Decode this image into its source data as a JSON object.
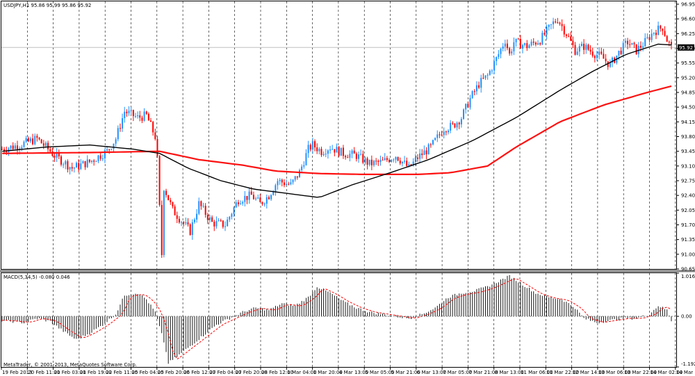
{
  "window": {
    "main_title": "USDJPY,H1  95.86 95.99 95.86 95.92",
    "macd_title": "MACD(5,34,5) -0.080 0.046",
    "copyright": "MetaTrader, © 2001-2013, MetaQuotes Software Corp."
  },
  "price_badge": {
    "value": "95.92",
    "color": "#000000"
  },
  "colors": {
    "bull": "#1e90ff",
    "bear": "#ff0000",
    "ma_fast": "#000000",
    "ma_slow": "#ff1010",
    "macd_hist": "#000000",
    "macd_signal": "#ff0000",
    "grid": "#000000"
  },
  "chart_data": [
    {
      "type": "candlestick",
      "symbol": "USDJPY",
      "timeframe": "H1",
      "x_labels": [
        "19 Feb 2013",
        "20 Feb 11:00",
        "21 Feb 03:00",
        "21 Feb 19:00",
        "22 Feb 11:00",
        "25 Feb 04:00",
        "25 Feb 20:00",
        "26 Feb 12:00",
        "27 Feb 04:00",
        "27 Feb 20:00",
        "28 Feb 12:00",
        "1 Mar 04:00",
        "1 Mar 20:00",
        "4 Mar 13:00",
        "5 Mar 05:00",
        "5 Mar 21:00",
        "6 Mar 13:00",
        "7 Mar 05:00",
        "7 Mar 21:00",
        "8 Mar 13:00",
        "11 Mar 06:00",
        "11 Mar 22:00",
        "12 Mar 14:00",
        "13 Mar 06:00",
        "13 Mar 22:00",
        "14 Mar 02:00",
        "14 Mar 18:00"
      ],
      "y_ticks": [
        "96.95",
        "96.60",
        "96.25",
        "95.90",
        "95.55",
        "95.20",
        "94.85",
        "94.50",
        "94.15",
        "93.80",
        "93.45",
        "93.10",
        "92.75",
        "92.40",
        "92.05",
        "91.70",
        "91.35",
        "91.00",
        "90.65"
      ],
      "ylim": [
        90.65,
        96.95
      ],
      "grid": true,
      "anchors": [
        [
          0,
          93.5
        ],
        [
          8,
          93.6
        ],
        [
          16,
          93.75
        ],
        [
          24,
          93.35
        ],
        [
          32,
          93.05
        ],
        [
          40,
          93.2
        ],
        [
          48,
          93.45
        ],
        [
          52,
          93.75
        ],
        [
          56,
          94.4
        ],
        [
          62,
          94.25
        ],
        [
          66,
          94.3
        ],
        [
          70,
          93.8
        ],
        [
          71,
          93.25
        ],
        [
          72,
          92.1
        ],
        [
          73,
          91.0
        ],
        [
          74,
          92.6
        ],
        [
          78,
          92.05
        ],
        [
          82,
          91.8
        ],
        [
          86,
          91.55
        ],
        [
          90,
          92.2
        ],
        [
          96,
          91.75
        ],
        [
          102,
          91.7
        ],
        [
          108,
          92.3
        ],
        [
          114,
          92.4
        ],
        [
          118,
          92.2
        ],
        [
          122,
          92.4
        ],
        [
          126,
          92.75
        ],
        [
          132,
          92.65
        ],
        [
          136,
          92.95
        ],
        [
          140,
          93.5
        ],
        [
          142,
          93.6
        ],
        [
          146,
          93.45
        ],
        [
          150,
          93.55
        ],
        [
          156,
          93.4
        ],
        [
          162,
          93.35
        ],
        [
          168,
          93.15
        ],
        [
          174,
          93.2
        ],
        [
          180,
          93.35
        ],
        [
          186,
          93.05
        ],
        [
          190,
          93.3
        ],
        [
          196,
          93.55
        ],
        [
          202,
          94.0
        ],
        [
          206,
          94.05
        ],
        [
          210,
          94.25
        ],
        [
          214,
          94.7
        ],
        [
          218,
          95.05
        ],
        [
          222,
          95.25
        ],
        [
          226,
          95.65
        ],
        [
          230,
          96.1
        ],
        [
          232,
          95.75
        ],
        [
          234,
          96.05
        ],
        [
          240,
          95.95
        ],
        [
          246,
          96.1
        ],
        [
          252,
          96.5
        ],
        [
          254,
          96.6
        ],
        [
          258,
          96.25
        ],
        [
          262,
          95.85
        ],
        [
          266,
          95.95
        ],
        [
          270,
          95.8
        ],
        [
          274,
          95.7
        ],
        [
          278,
          95.5
        ],
        [
          282,
          95.8
        ],
        [
          286,
          96.05
        ],
        [
          290,
          95.85
        ],
        [
          294,
          96.05
        ],
        [
          298,
          96.3
        ],
        [
          302,
          96.4
        ],
        [
          304,
          96.1
        ],
        [
          306,
          95.92
        ]
      ],
      "ma_fast_anchors": [
        [
          0,
          93.45
        ],
        [
          20,
          93.55
        ],
        [
          40,
          93.6
        ],
        [
          60,
          93.5
        ],
        [
          72,
          93.4
        ],
        [
          85,
          93.05
        ],
        [
          100,
          92.75
        ],
        [
          115,
          92.55
        ],
        [
          130,
          92.45
        ],
        [
          145,
          92.35
        ],
        [
          160,
          92.65
        ],
        [
          178,
          92.95
        ],
        [
          195,
          93.25
        ],
        [
          215,
          93.7
        ],
        [
          235,
          94.25
        ],
        [
          255,
          94.9
        ],
        [
          270,
          95.35
        ],
        [
          285,
          95.75
        ],
        [
          300,
          96.0
        ],
        [
          306,
          95.98
        ]
      ],
      "ma_slow_anchors": [
        [
          0,
          93.4
        ],
        [
          40,
          93.42
        ],
        [
          72,
          93.45
        ],
        [
          90,
          93.25
        ],
        [
          110,
          93.12
        ],
        [
          125,
          92.98
        ],
        [
          145,
          92.92
        ],
        [
          165,
          92.9
        ],
        [
          190,
          92.9
        ],
        [
          205,
          92.94
        ],
        [
          222,
          93.1
        ],
        [
          235,
          93.55
        ],
        [
          255,
          94.15
        ],
        [
          275,
          94.55
        ],
        [
          295,
          94.85
        ],
        [
          306,
          95.0
        ]
      ]
    },
    {
      "type": "bar",
      "indicator": "MACD(5,34,5)",
      "y_ticks": [
        "1.016",
        "0.00",
        "-1.192"
      ],
      "ylim": [
        -1.192,
        1.016
      ],
      "anchors": [
        [
          0,
          -0.1
        ],
        [
          10,
          -0.15
        ],
        [
          16,
          -0.05
        ],
        [
          22,
          -0.12
        ],
        [
          28,
          -0.35
        ],
        [
          34,
          -0.55
        ],
        [
          40,
          -0.4
        ],
        [
          46,
          -0.2
        ],
        [
          52,
          0.05
        ],
        [
          56,
          0.5
        ],
        [
          62,
          0.55
        ],
        [
          66,
          0.4
        ],
        [
          70,
          0.1
        ],
        [
          74,
          -0.6
        ],
        [
          76,
          -1.1
        ],
        [
          80,
          -0.95
        ],
        [
          86,
          -0.7
        ],
        [
          92,
          -0.45
        ],
        [
          98,
          -0.2
        ],
        [
          104,
          -0.05
        ],
        [
          110,
          0.1
        ],
        [
          116,
          0.2
        ],
        [
          122,
          0.15
        ],
        [
          128,
          0.3
        ],
        [
          134,
          0.25
        ],
        [
          140,
          0.45
        ],
        [
          144,
          0.7
        ],
        [
          150,
          0.55
        ],
        [
          156,
          0.35
        ],
        [
          162,
          0.2
        ],
        [
          168,
          0.1
        ],
        [
          174,
          0.05
        ],
        [
          180,
          0.0
        ],
        [
          186,
          -0.05
        ],
        [
          192,
          0.05
        ],
        [
          198,
          0.2
        ],
        [
          204,
          0.45
        ],
        [
          210,
          0.55
        ],
        [
          216,
          0.6
        ],
        [
          222,
          0.7
        ],
        [
          228,
          0.85
        ],
        [
          232,
          0.95
        ],
        [
          238,
          0.75
        ],
        [
          244,
          0.55
        ],
        [
          250,
          0.45
        ],
        [
          256,
          0.4
        ],
        [
          262,
          0.2
        ],
        [
          266,
          -0.05
        ],
        [
          272,
          -0.15
        ],
        [
          278,
          -0.1
        ],
        [
          284,
          -0.05
        ],
        [
          290,
          -0.05
        ],
        [
          296,
          0.05
        ],
        [
          300,
          0.25
        ],
        [
          304,
          0.15
        ],
        [
          306,
          -0.1
        ]
      ]
    }
  ]
}
